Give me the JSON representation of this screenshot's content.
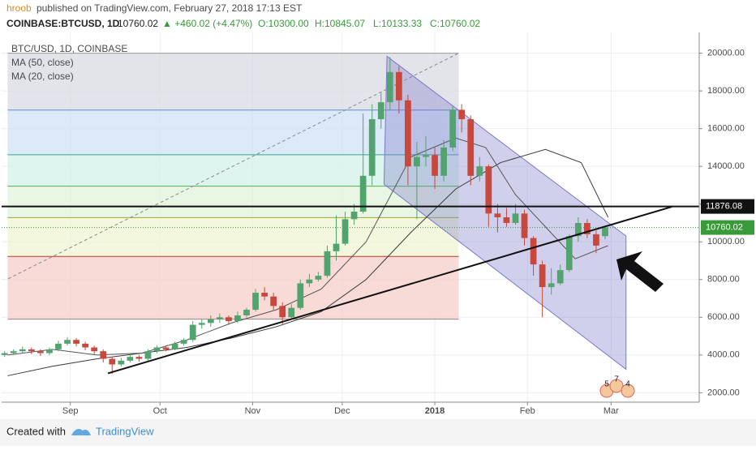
{
  "header": {
    "author": "hroob",
    "published": "published on TradingView.com, February 27, 2018 17:13 EST",
    "symbol": "COINBASE:BTCUSD, 1D",
    "last": "10760.02",
    "change": "▲ +460.02 (+4.47%)",
    "open": "O:10300.00",
    "high": "H:10845.07",
    "low": "L:10133.33",
    "close": "C:10760.02"
  },
  "footer": {
    "created": "Created with",
    "brand": "TradingView"
  },
  "chart_data": {
    "type": "candlestick",
    "title": "BTC/USD, 1D, COINBASE",
    "up_color": "#53a36e",
    "down_color": "#c8483d",
    "xlim": [
      -2,
      231.5
    ],
    "ylim": [
      1500,
      21100
    ],
    "xticks": [
      {
        "value": 21,
        "label": "Sep"
      },
      {
        "value": 51,
        "label": "Oct"
      },
      {
        "value": 82,
        "label": "Nov"
      },
      {
        "value": 112,
        "label": "Dec"
      },
      {
        "value": 143,
        "label": "2018"
      },
      {
        "value": 174,
        "label": "Feb"
      },
      {
        "value": 202,
        "label": "Mar"
      }
    ],
    "yticks": [
      {
        "value": 2000,
        "label": "2000.00"
      },
      {
        "value": 4000,
        "label": "4000.00"
      },
      {
        "value": 6000,
        "label": "6000.00"
      },
      {
        "value": 8000,
        "label": "8000.00"
      },
      {
        "value": 10000,
        "label": "10000.00"
      },
      {
        "value": 12000,
        "label": "12000.00"
      },
      {
        "value": 14000,
        "label": "14000.00"
      },
      {
        "value": 16000,
        "label": "16000.00"
      },
      {
        "value": 18000,
        "label": "18000.00"
      },
      {
        "value": 20000,
        "label": "20000.00"
      }
    ],
    "x": [
      -1,
      2,
      5,
      8,
      11,
      14,
      17,
      20,
      23,
      26,
      29,
      32,
      35,
      38,
      41,
      44,
      47,
      50,
      53,
      56,
      59,
      62,
      65,
      68,
      71,
      74,
      77,
      80,
      83,
      86,
      89,
      92,
      95,
      98,
      101,
      104,
      107,
      110,
      113,
      116,
      119,
      122,
      125,
      128,
      131,
      134,
      137,
      140,
      143,
      146,
      149,
      152,
      155,
      158,
      161,
      164,
      167,
      170,
      173,
      176,
      179,
      182,
      185,
      188,
      191,
      194,
      197,
      200
    ],
    "open": [
      4000,
      4100,
      4200,
      4300,
      4200,
      4100,
      4300,
      4600,
      4800,
      4600,
      4400,
      4200,
      3800,
      3500,
      3700,
      3900,
      3800,
      4200,
      4400,
      4300,
      4600,
      4800,
      5600,
      5700,
      5900,
      6000,
      5800,
      6100,
      6400,
      7300,
      7100,
      6600,
      6000,
      6500,
      7800,
      8000,
      8200,
      9500,
      9900,
      11200,
      11600,
      13500,
      16500,
      17400,
      19000,
      17500,
      14000,
      14500,
      14600,
      13500,
      15000,
      17000,
      16500,
      13500,
      14000,
      11500,
      11300,
      11000,
      11500,
      10200,
      8800,
      7600,
      7800,
      8500,
      10300,
      11000,
      10400,
      10300
    ],
    "high": [
      4200,
      4300,
      4450,
      4400,
      4300,
      4400,
      4750,
      4950,
      4900,
      4700,
      4500,
      4300,
      3900,
      3850,
      4050,
      4000,
      4300,
      4500,
      4500,
      4700,
      4900,
      5800,
      5900,
      6100,
      6200,
      6100,
      6300,
      6500,
      7500,
      7600,
      7300,
      6800,
      6700,
      8000,
      8300,
      8400,
      9800,
      11400,
      11600,
      12000,
      16800,
      17300,
      17900,
      19800,
      19300,
      17800,
      15300,
      15600,
      15000,
      15400,
      17200,
      17300,
      16700,
      14500,
      14100,
      12000,
      11800,
      12000,
      11700,
      10300,
      9000,
      8600,
      8800,
      10400,
      11300,
      11200,
      10600,
      10845.07
    ],
    "low": [
      3900,
      4000,
      4100,
      4050,
      3950,
      4000,
      4200,
      4500,
      4450,
      4250,
      4050,
      3600,
      3000,
      3400,
      3600,
      3650,
      3700,
      4100,
      4200,
      4250,
      4500,
      4700,
      5400,
      5500,
      5700,
      5600,
      5700,
      6000,
      6300,
      6900,
      6400,
      5600,
      5900,
      6400,
      7600,
      7900,
      8100,
      9000,
      9800,
      10900,
      11500,
      13000,
      16000,
      17000,
      16800,
      13000,
      11200,
      14000,
      12800,
      13200,
      14800,
      15800,
      13000,
      13200,
      10800,
      10500,
      10800,
      10900,
      9800,
      8200,
      6000,
      7200,
      7700,
      8400,
      10000,
      10200,
      9400,
      10133.33
    ],
    "close": [
      4100,
      4200,
      4300,
      4200,
      4100,
      4300,
      4600,
      4800,
      4600,
      4400,
      4200,
      3800,
      3500,
      3700,
      3900,
      3800,
      4200,
      4400,
      4300,
      4600,
      4800,
      5600,
      5700,
      5900,
      6000,
      5800,
      6100,
      6400,
      7300,
      7100,
      6600,
      6000,
      6500,
      7800,
      8000,
      8200,
      9500,
      9900,
      11200,
      11600,
      13500,
      16500,
      17400,
      19000,
      17500,
      14000,
      14500,
      14600,
      13500,
      15000,
      17000,
      16500,
      13500,
      14000,
      11500,
      11300,
      11000,
      11500,
      10200,
      8800,
      7600,
      7800,
      8500,
      10300,
      11000,
      10400,
      9800,
      10760.02
    ],
    "ma_series": [
      {
        "name": "MA (50, close)",
        "color": "#3a3a3a",
        "x": [
          0,
          15,
          30,
          45,
          60,
          75,
          90,
          105,
          120,
          135,
          150,
          165,
          180,
          192,
          201
        ],
        "values": [
          2900,
          3400,
          3800,
          4100,
          4400,
          4900,
          5500,
          6300,
          8000,
          10500,
          12800,
          14200,
          14900,
          14200,
          11300
        ]
      },
      {
        "name": "MA (20, close)",
        "color": "#555555",
        "x": [
          0,
          15,
          30,
          45,
          60,
          75,
          90,
          105,
          120,
          135,
          150,
          160,
          170,
          180,
          190,
          201
        ],
        "values": [
          4000,
          4300,
          4000,
          4100,
          4800,
          5700,
          6400,
          7500,
          10000,
          14500,
          15500,
          15000,
          12500,
          10800,
          9100,
          9800
        ]
      }
    ],
    "fibonacci": {
      "x": [
        0,
        151
      ],
      "levels": [
        20000,
        16983,
        14614,
        12950,
        11286,
        9228,
        5900
      ],
      "line_colors": [
        "#9a9a9a",
        "#5b8fd0",
        "#3aa58f",
        "#4caf50",
        "#9aa83a",
        "#c0392b",
        "#888888"
      ],
      "fill_colors": [
        "#d9d9e3",
        "#cfe2f5",
        "#d3f1ea",
        "#e0f3d9",
        "#eef4d3",
        "#f6cdc9"
      ]
    },
    "channel": {
      "color": "#7b78c8",
      "top": {
        "x": [
          127,
          207
        ],
        "y": [
          19830,
          10310
        ]
      },
      "bottom": {
        "x": [
          126,
          207
        ],
        "y": [
          13057,
          3243
        ]
      }
    },
    "trendline": {
      "x": [
        33.6,
        222.3
      ],
      "y": [
        3030,
        11857
      ]
    },
    "dashed_line": {
      "x": [
        0.2,
        151
      ],
      "y": [
        8043,
        20000
      ]
    },
    "hline": 11876.08,
    "last_price": 10760.02,
    "event_badges": [
      "5",
      "7",
      "4"
    ]
  }
}
